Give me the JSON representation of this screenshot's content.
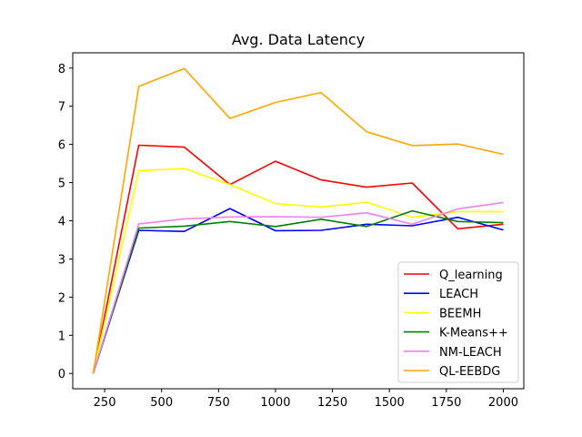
{
  "chart_data": {
    "type": "line",
    "title": "Avg. Data Latency",
    "xlabel": "",
    "ylabel": "",
    "x": [
      200,
      400,
      600,
      800,
      1000,
      1200,
      1400,
      1600,
      1800,
      2000
    ],
    "xlim": [
      110,
      2090
    ],
    "ylim": [
      -0.4,
      8.4
    ],
    "xticks": [
      250,
      500,
      750,
      1000,
      1250,
      1500,
      1750,
      2000
    ],
    "yticks": [
      0,
      1,
      2,
      3,
      4,
      5,
      6,
      7,
      8
    ],
    "grid": false,
    "legend_position": "lower-right",
    "series": [
      {
        "name": "Q_learning",
        "color": "#ff0000",
        "values": [
          0,
          5.98,
          5.93,
          4.95,
          5.56,
          5.07,
          4.88,
          4.99,
          3.79,
          3.91
        ]
      },
      {
        "name": "LEACH",
        "color": "#0000ff",
        "values": [
          0,
          3.75,
          3.72,
          4.32,
          3.74,
          3.75,
          3.91,
          3.87,
          4.09,
          3.76
        ]
      },
      {
        "name": "BEEMH",
        "color": "#ffff00",
        "values": [
          0,
          5.31,
          5.37,
          4.95,
          4.45,
          4.36,
          4.49,
          4.09,
          4.24,
          4.24
        ]
      },
      {
        "name": "K-Means++",
        "color": "#008000",
        "values": [
          0,
          3.81,
          3.86,
          3.98,
          3.85,
          4.04,
          3.85,
          4.26,
          3.98,
          3.95
        ]
      },
      {
        "name": "NM-LEACH",
        "color": "#ee82ee",
        "values": [
          0,
          3.92,
          4.05,
          4.1,
          4.11,
          4.09,
          4.21,
          3.91,
          4.31,
          4.48
        ]
      },
      {
        "name": "QL-EEBDG",
        "color": "#ffa500",
        "values": [
          0,
          7.52,
          7.99,
          6.68,
          7.1,
          7.36,
          6.33,
          5.97,
          6.01,
          5.74
        ]
      }
    ]
  }
}
